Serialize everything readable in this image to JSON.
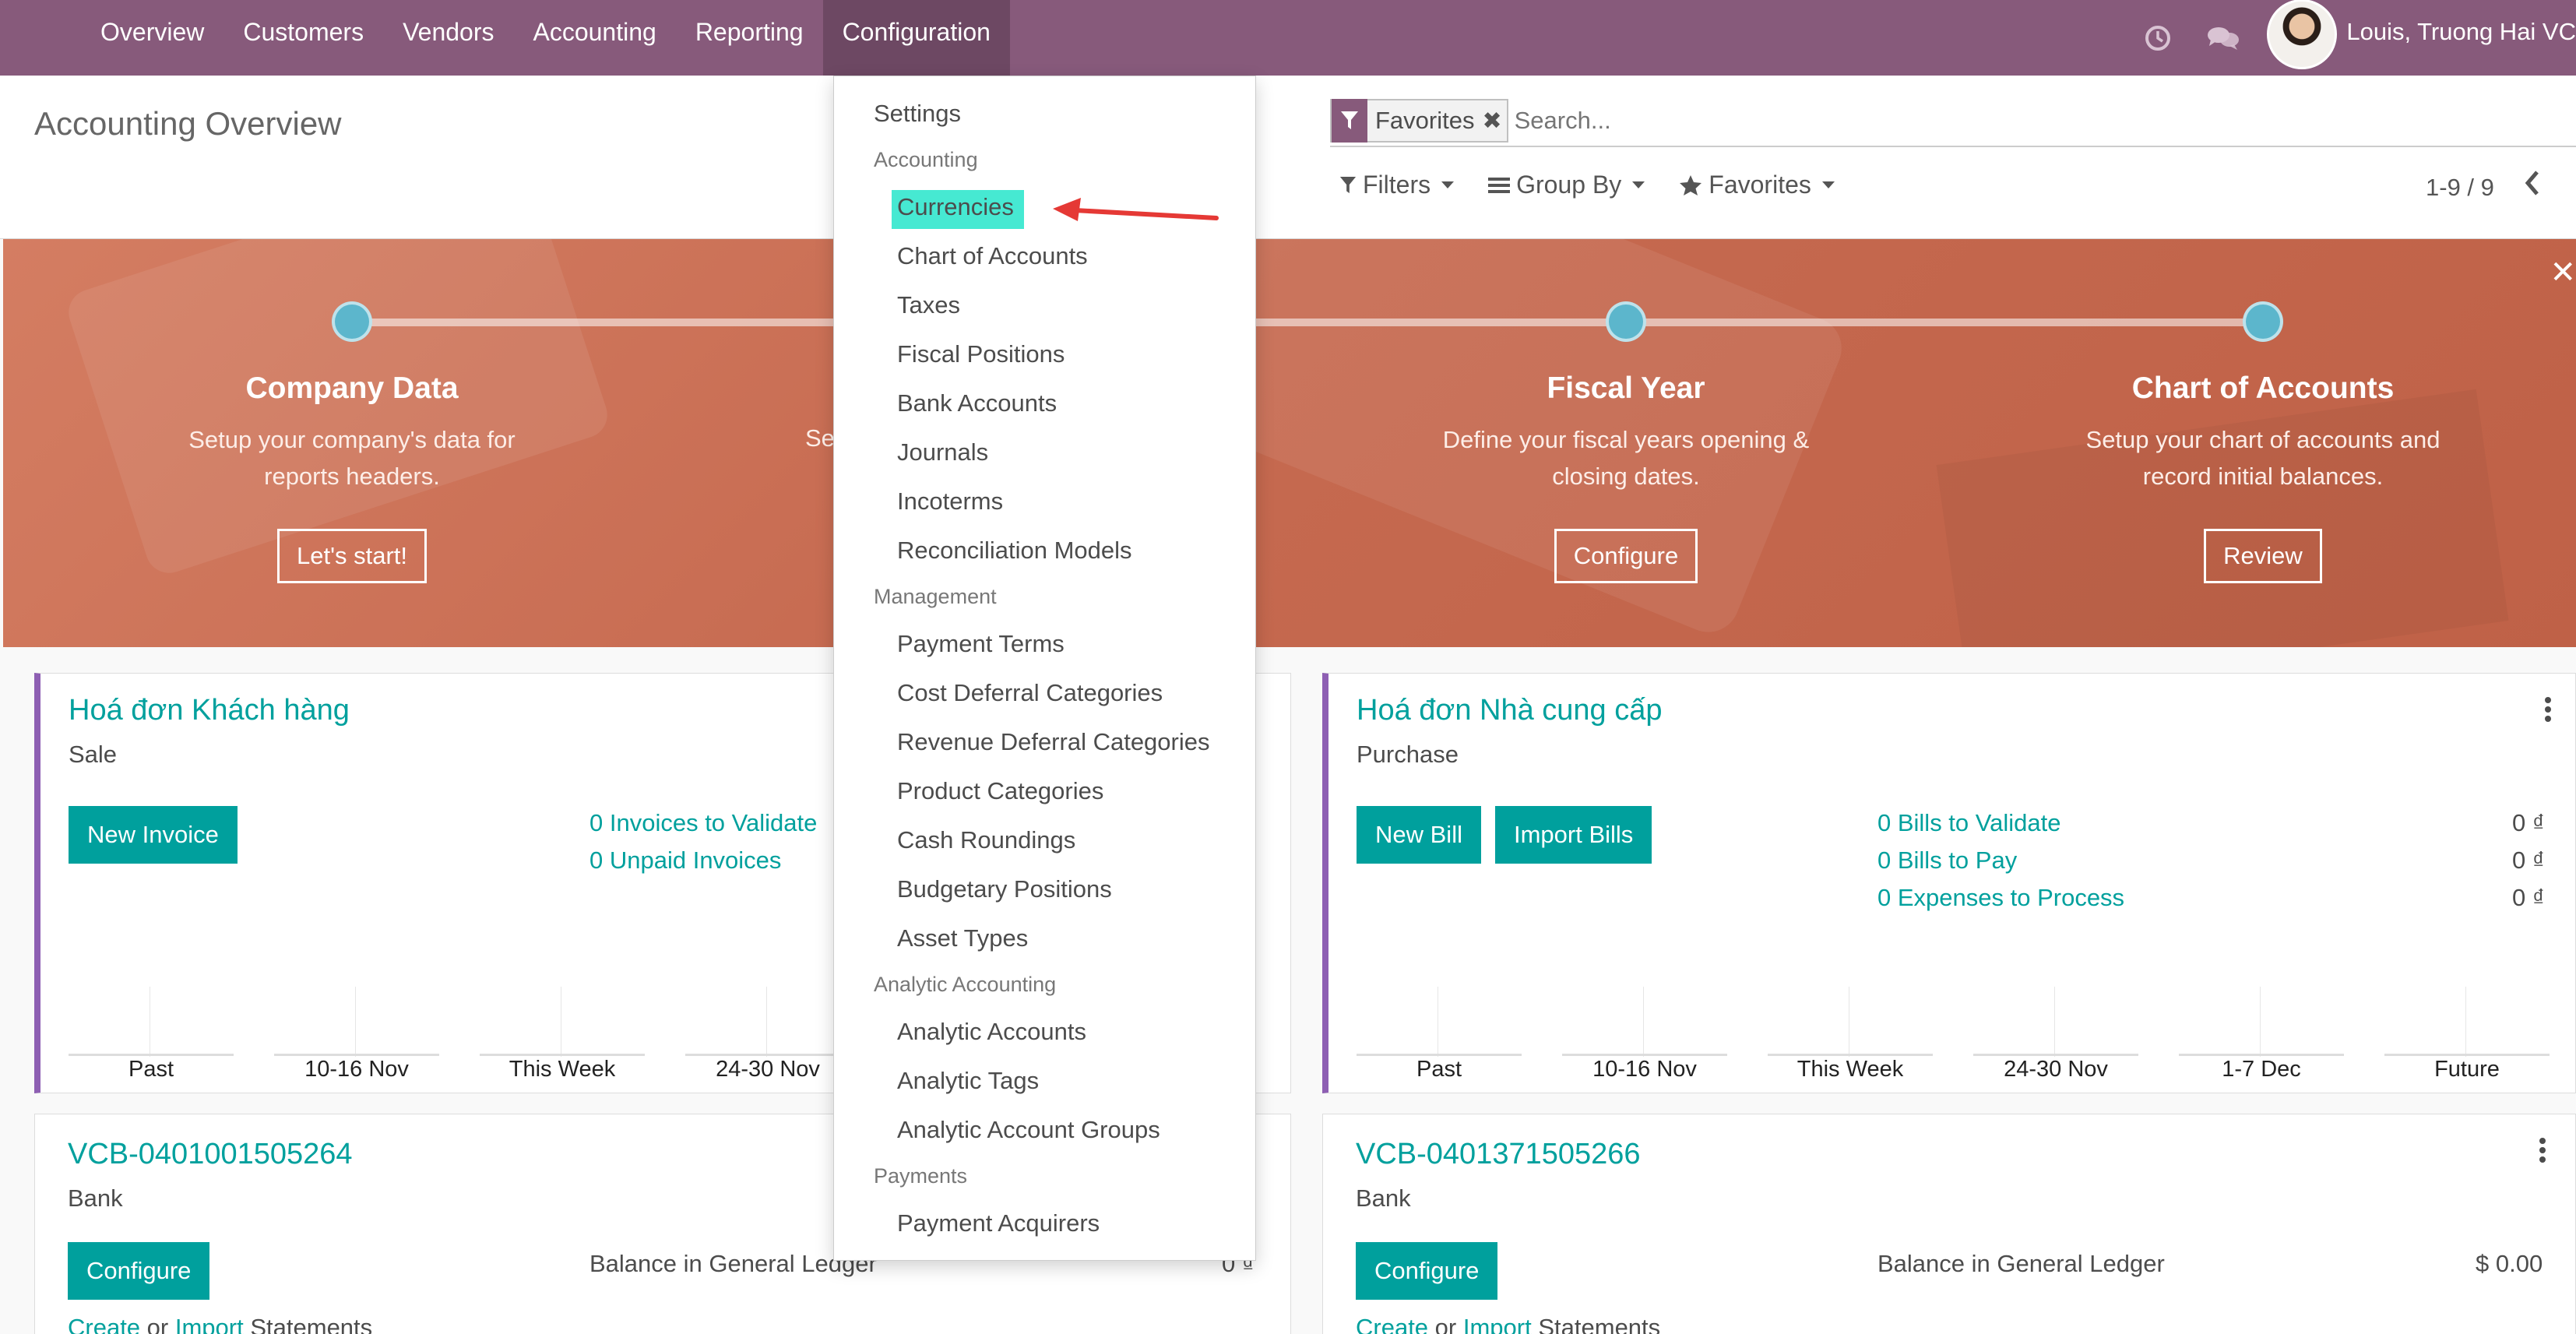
{
  "nav": {
    "items": [
      "Overview",
      "Customers",
      "Vendors",
      "Accounting",
      "Reporting",
      "Configuration"
    ],
    "active": "Configuration",
    "user_name": "Louis, Truong Hai VC"
  },
  "control_panel": {
    "title": "Accounting Overview",
    "search_facet": "Favorites",
    "search_placeholder": "Search...",
    "filters_label": "Filters",
    "groupby_label": "Group By",
    "favorites_label": "Favorites",
    "pager": "1-9 / 9"
  },
  "onboarding": {
    "steps": [
      {
        "title": "Company Data",
        "desc_line1": "Setup your company's data for",
        "desc_line2": "reports headers.",
        "button": "Let's start!"
      },
      {
        "title": "",
        "desc_line1": "Se",
        "desc_line2": "",
        "button": ""
      },
      {
        "title": "Fiscal Year",
        "desc_line1": "Define your fiscal years opening &",
        "desc_line2": "closing dates.",
        "button": "Configure"
      },
      {
        "title": "Chart of Accounts",
        "desc_line1": "Setup your chart of accounts and",
        "desc_line2": "record initial balances.",
        "button": "Review"
      }
    ]
  },
  "cards": {
    "customer_invoices": {
      "title": "Hoá đơn Khách hàng",
      "subtitle": "Sale",
      "button": "New Invoice",
      "links": [
        "0 Invoices to Validate",
        "0 Unpaid Invoices"
      ],
      "chart_labels": [
        "Past",
        "10-16 Nov",
        "This Week",
        "24-30 Nov"
      ]
    },
    "vendor_bills": {
      "title": "Hoá đơn Nhà cung cấp",
      "subtitle": "Purchase",
      "buttons": [
        "New Bill",
        "Import Bills"
      ],
      "links": [
        "0 Bills to Validate",
        "0 Bills to Pay",
        "0 Expenses to Process"
      ],
      "values": [
        "0 ₫",
        "0 ₫",
        "0 ₫"
      ],
      "chart_labels": [
        "Past",
        "10-16 Nov",
        "This Week",
        "24-30 Nov",
        "1-7 Dec",
        "Future"
      ]
    },
    "bank1": {
      "title": "VCB-0401001505264",
      "subtitle": "Bank",
      "button": "Configure",
      "balance_label": "Balance in General Ledger",
      "balance_value": "0 ₫",
      "create_link": "Create",
      "or_text": "or",
      "import_link": "Import",
      "statements_text": "Statements"
    },
    "bank2": {
      "title": "VCB-0401371505266",
      "subtitle": "Bank",
      "button": "Configure",
      "balance_label": "Balance in General Ledger",
      "balance_value": "$ 0.00",
      "create_link": "Create",
      "or_text": "or",
      "import_link": "Import",
      "statements_text": "Statements"
    }
  },
  "dropdown": {
    "settings": "Settings",
    "sections": [
      {
        "header": "Accounting",
        "items": [
          "Currencies",
          "Chart of Accounts",
          "Taxes",
          "Fiscal Positions",
          "Bank Accounts",
          "Journals",
          "Incoterms",
          "Reconciliation Models"
        ]
      },
      {
        "header": "Management",
        "items": [
          "Payment Terms",
          "Cost Deferral Categories",
          "Revenue Deferral Categories",
          "Product Categories",
          "Cash Roundings",
          "Budgetary Positions",
          "Asset Types"
        ]
      },
      {
        "header": "Analytic Accounting",
        "items": [
          "Analytic Accounts",
          "Analytic Tags",
          "Analytic Account Groups"
        ]
      },
      {
        "header": "Payments",
        "items": [
          "Payment Acquirers"
        ]
      }
    ],
    "highlight_color": "#46e9d2"
  },
  "colors": {
    "brand": "#875a7b",
    "teal": "#00a09d",
    "banner": "#c66a50",
    "arrow": "#e53935"
  }
}
